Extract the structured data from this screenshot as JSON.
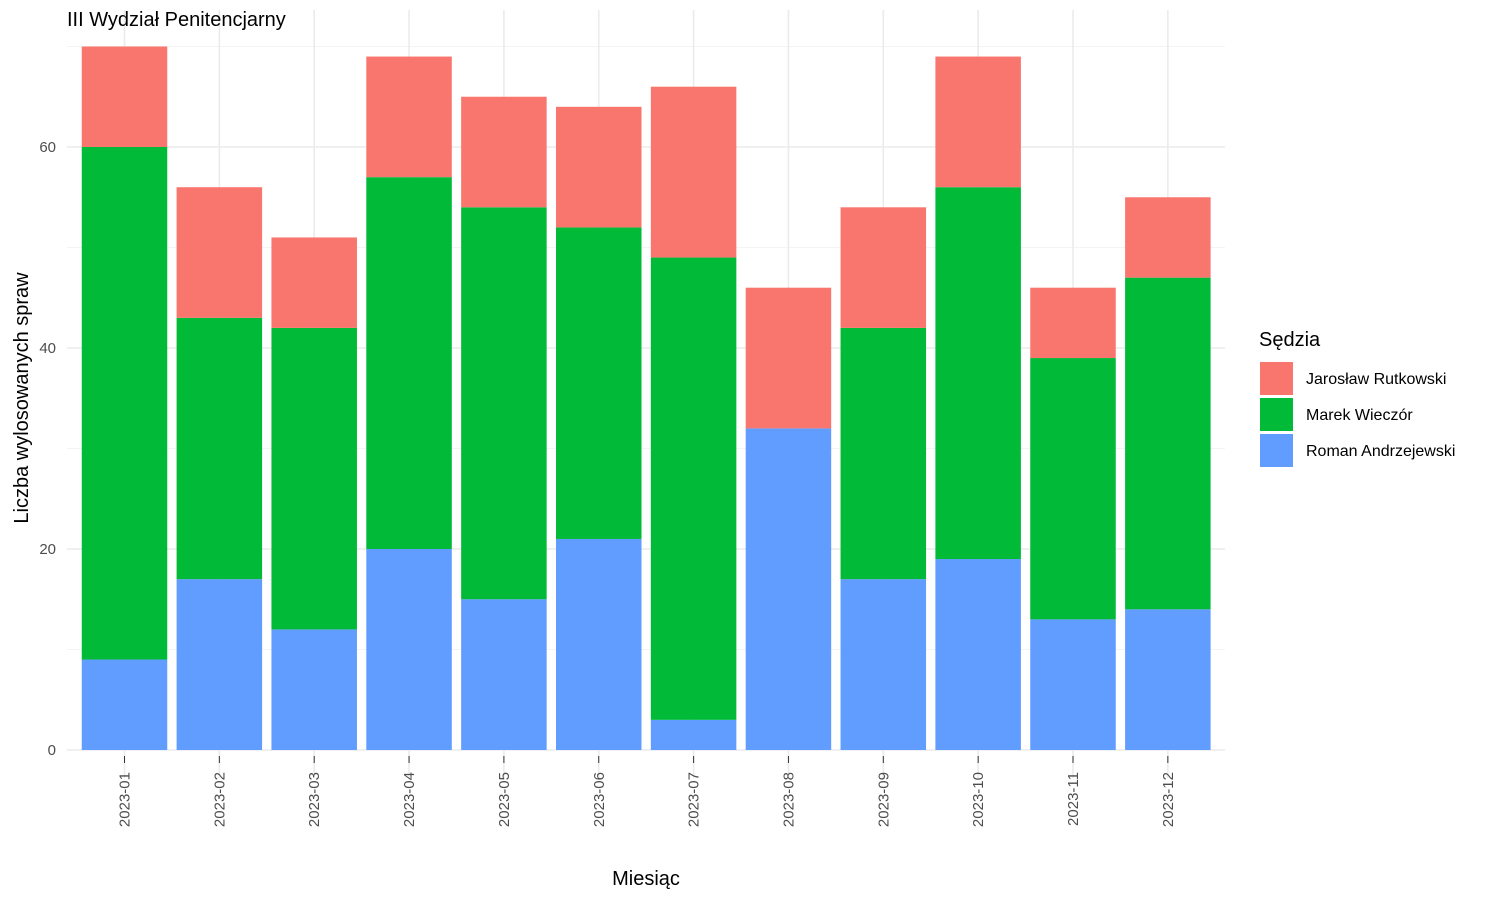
{
  "chart_data": {
    "type": "bar",
    "stacked": true,
    "title": "III Wydział Penitencjarny",
    "xlabel": "Miesiąc",
    "ylabel": "Liczba wylosowanych spraw",
    "ylim": [
      0,
      70
    ],
    "yticks": [
      0,
      20,
      40,
      60
    ],
    "grid": true,
    "legend_position": "right",
    "legend_title": "Sędzia",
    "categories": [
      "2023-01",
      "2023-02",
      "2023-03",
      "2023-04",
      "2023-05",
      "2023-06",
      "2023-07",
      "2023-08",
      "2023-09",
      "2023-10",
      "2023-11",
      "2023-12"
    ],
    "series": [
      {
        "name": "Roman Andrzejewski",
        "color": "#619CFF",
        "values": [
          9,
          17,
          12,
          20,
          15,
          21,
          3,
          32,
          17,
          19,
          13,
          14
        ]
      },
      {
        "name": "Marek Wieczór",
        "color": "#00BA38",
        "values": [
          51,
          26,
          30,
          37,
          39,
          31,
          46,
          0,
          25,
          37,
          26,
          33
        ]
      },
      {
        "name": "Jarosław Rutkowski",
        "color": "#F8766D",
        "values": [
          10,
          13,
          9,
          12,
          11,
          12,
          17,
          14,
          12,
          13,
          7,
          8
        ]
      }
    ],
    "legend_order": [
      "Jarosław Rutkowski",
      "Marek Wieczór",
      "Roman Andrzejewski"
    ]
  }
}
